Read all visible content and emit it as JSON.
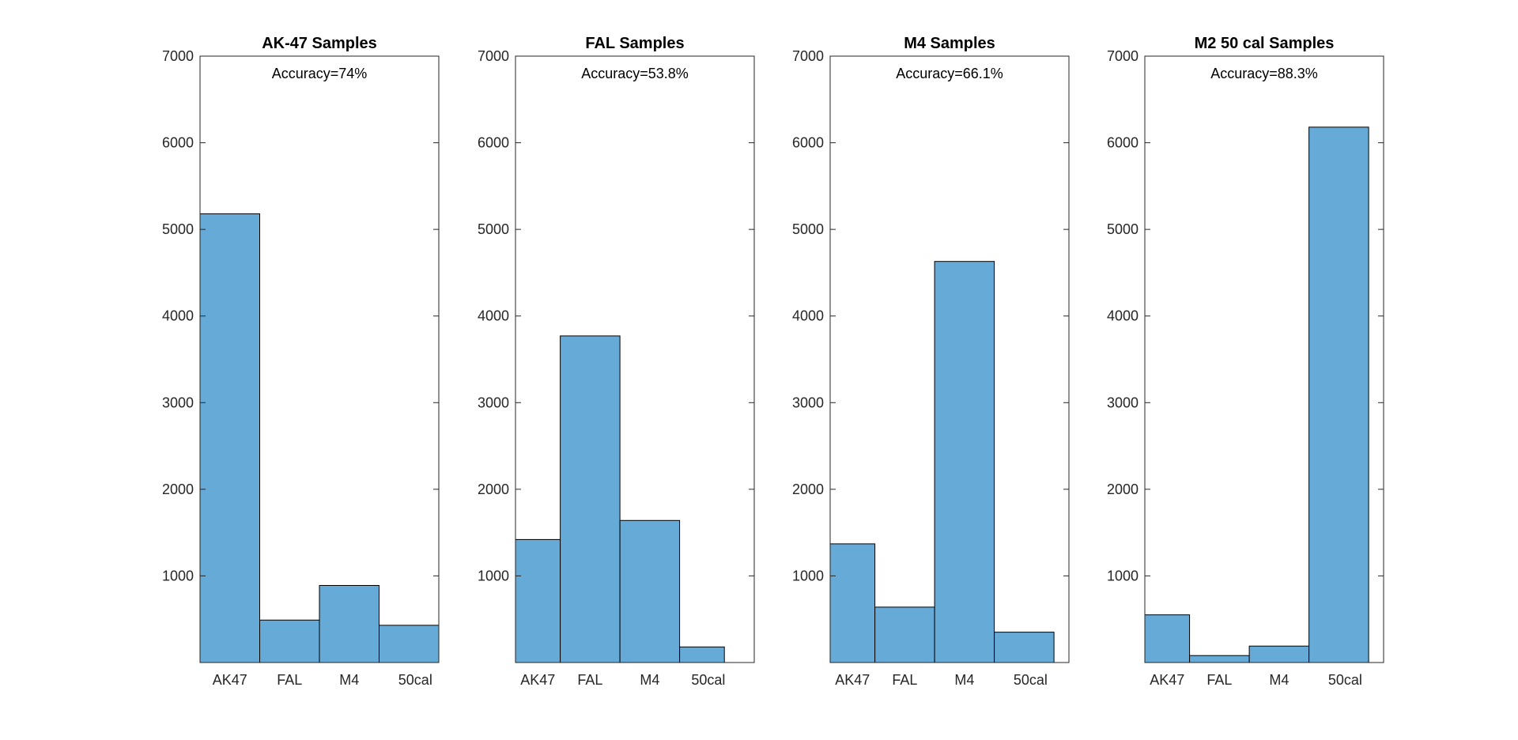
{
  "figure": {
    "colors": {
      "bar_fill": "#66aad7",
      "bar_edge": "#000000",
      "axes": "#262626",
      "background": "#ffffff"
    }
  },
  "chart_data": [
    {
      "type": "bar",
      "title": "AK-47 Samples",
      "annotation": "Accuracy=74%",
      "categories": [
        "AK47",
        "FAL",
        "M4",
        "50cal"
      ],
      "bin_edges": [
        1,
        2,
        3,
        4,
        5
      ],
      "values": [
        5180,
        490,
        890,
        430
      ],
      "ylim": [
        0,
        7000
      ],
      "yticks": [
        "1000",
        "2000",
        "3000",
        "4000",
        "5000",
        "6000",
        "7000"
      ],
      "xlabel": "",
      "ylabel": "",
      "grid": false,
      "legend": "none"
    },
    {
      "type": "bar",
      "title": "FAL Samples",
      "annotation": "Accuracy=53.8%",
      "categories": [
        "AK47",
        "FAL",
        "M4",
        "50cal"
      ],
      "bin_edges": [
        1,
        1.75,
        2.75,
        3.75,
        4.5
      ],
      "values": [
        1420,
        3770,
        1640,
        180
      ],
      "ylim": [
        0,
        7000
      ],
      "yticks": [
        "1000",
        "2000",
        "3000",
        "4000",
        "5000",
        "6000",
        "7000"
      ],
      "xlabel": "",
      "ylabel": "",
      "grid": false,
      "legend": "none"
    },
    {
      "type": "bar",
      "title": "M4 Samples",
      "annotation": "Accuracy=66.1%",
      "categories": [
        "AK47",
        "FAL",
        "M4",
        "50cal"
      ],
      "bin_edges": [
        1,
        1.75,
        2.75,
        3.75,
        4.75
      ],
      "values": [
        1370,
        640,
        4630,
        350
      ],
      "ylim": [
        0,
        7000
      ],
      "yticks": [
        "1000",
        "2000",
        "3000",
        "4000",
        "5000",
        "6000",
        "7000"
      ],
      "xlabel": "",
      "ylabel": "",
      "grid": false,
      "legend": "none"
    },
    {
      "type": "bar",
      "title": "M2 50 cal Samples",
      "annotation": "Accuracy=88.3%",
      "categories": [
        "AK47",
        "FAL",
        "M4",
        "50cal"
      ],
      "bin_edges": [
        1,
        1.75,
        2.75,
        3.75,
        4.75
      ],
      "values": [
        550,
        80,
        190,
        6180
      ],
      "ylim": [
        0,
        7000
      ],
      "yticks": [
        "1000",
        "2000",
        "3000",
        "4000",
        "5000",
        "6000",
        "7000"
      ],
      "xlabel": "",
      "ylabel": "",
      "grid": false,
      "legend": "none"
    }
  ]
}
